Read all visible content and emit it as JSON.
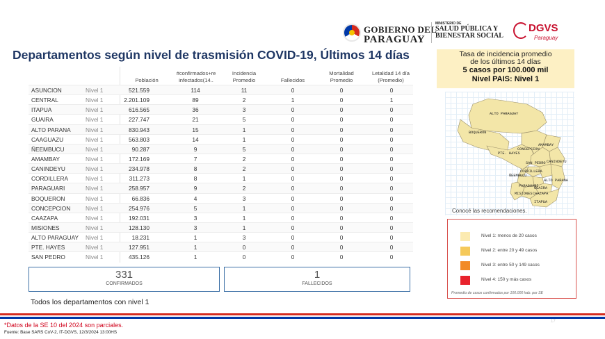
{
  "header": {
    "gov_line1": "GOBIERNO DEL",
    "gov_line2": "PARAGUAY",
    "ministry_small": "MINISTERIO DE",
    "ministry_l1": "SALUD PÚBLICA Y",
    "ministry_l2": "BIENESTAR SOCIAL",
    "dgvs": "DGVS",
    "dgvs_sub": "Paraguay"
  },
  "title": "Departamentos según nivel de trasmisión COVID-19, Últimos 14 días",
  "table": {
    "headers": {
      "poblacion": "Población",
      "confirmados": "#confirmados+re\ninfectados(14..",
      "incidencia": "Incidencia\nPromedio",
      "fallecidos": "Fallecidos",
      "mortalidad": "Mortalidad\nPromedio",
      "letalidad": "Letalidad 14 día\n(Promedio)"
    },
    "rows": [
      {
        "dep": "ASUNCION",
        "nivel": "Nivel 1",
        "pob": "521.559",
        "conf": "114",
        "inc": "11",
        "fal": "0",
        "mor": "0",
        "let": "0"
      },
      {
        "dep": "CENTRAL",
        "nivel": "Nivel 1",
        "pob": "2.201.109",
        "conf": "89",
        "inc": "2",
        "fal": "1",
        "mor": "0",
        "let": "1"
      },
      {
        "dep": "ITAPUA",
        "nivel": "Nivel 1",
        "pob": "616.565",
        "conf": "36",
        "inc": "3",
        "fal": "0",
        "mor": "0",
        "let": "0"
      },
      {
        "dep": "GUAIRA",
        "nivel": "Nivel 1",
        "pob": "227.747",
        "conf": "21",
        "inc": "5",
        "fal": "0",
        "mor": "0",
        "let": "0"
      },
      {
        "dep": "ALTO PARANA",
        "nivel": "Nivel 1",
        "pob": "830.943",
        "conf": "15",
        "inc": "1",
        "fal": "0",
        "mor": "0",
        "let": "0"
      },
      {
        "dep": "CAAGUAZU",
        "nivel": "Nivel 1",
        "pob": "563.803",
        "conf": "14",
        "inc": "1",
        "fal": "0",
        "mor": "0",
        "let": "0"
      },
      {
        "dep": "ÑEEMBUCU",
        "nivel": "Nivel 1",
        "pob": "90.287",
        "conf": "9",
        "inc": "5",
        "fal": "0",
        "mor": "0",
        "let": "0"
      },
      {
        "dep": "AMAMBAY",
        "nivel": "Nivel 1",
        "pob": "172.169",
        "conf": "7",
        "inc": "2",
        "fal": "0",
        "mor": "0",
        "let": "0"
      },
      {
        "dep": "CANINDEYU",
        "nivel": "Nivel 1",
        "pob": "234.978",
        "conf": "8",
        "inc": "2",
        "fal": "0",
        "mor": "0",
        "let": "0"
      },
      {
        "dep": "CORDILLERA",
        "nivel": "Nivel 1",
        "pob": "311.273",
        "conf": "8",
        "inc": "1",
        "fal": "0",
        "mor": "0",
        "let": "0"
      },
      {
        "dep": "PARAGUARI",
        "nivel": "Nivel 1",
        "pob": "258.957",
        "conf": "9",
        "inc": "2",
        "fal": "0",
        "mor": "0",
        "let": "0"
      },
      {
        "dep": "BOQUERON",
        "nivel": "Nivel 1",
        "pob": "66.836",
        "conf": "4",
        "inc": "3",
        "fal": "0",
        "mor": "0",
        "let": "0"
      },
      {
        "dep": "CONCEPCION",
        "nivel": "Nivel 1",
        "pob": "254.976",
        "conf": "5",
        "inc": "1",
        "fal": "0",
        "mor": "0",
        "let": "0"
      },
      {
        "dep": "CAAZAPA",
        "nivel": "Nivel 1",
        "pob": "192.031",
        "conf": "3",
        "inc": "1",
        "fal": "0",
        "mor": "0",
        "let": "0"
      },
      {
        "dep": "MISIONES",
        "nivel": "Nivel 1",
        "pob": "128.130",
        "conf": "3",
        "inc": "1",
        "fal": "0",
        "mor": "0",
        "let": "0"
      },
      {
        "dep": "ALTO PARAGUAY",
        "nivel": "Nivel 1",
        "pob": "18.231",
        "conf": "1",
        "inc": "3",
        "fal": "0",
        "mor": "0",
        "let": "0"
      },
      {
        "dep": "PTE. HAYES",
        "nivel": "Nivel 1",
        "pob": "127.951",
        "conf": "1",
        "inc": "0",
        "fal": "0",
        "mor": "0",
        "let": "0"
      },
      {
        "dep": "SAN PEDRO",
        "nivel": "Nivel 1",
        "pob": "435.126",
        "conf": "1",
        "inc": "0",
        "fal": "0",
        "mor": "0",
        "let": "0"
      }
    ]
  },
  "totals": {
    "confirmados_value": "331",
    "confirmados_label": "CONFIRMADOS",
    "fallecidos_value": "1",
    "fallecidos_label": "FALLECIDOS"
  },
  "all_departments_note": "Todos los departamentos con nivel 1",
  "incidence_box": {
    "line1": "Tasa de incidencia promedio",
    "line2": "de los últimos 14 días",
    "line3": "5 casos por 100.000 mil",
    "line4": "Nivel PAIS: Nivel 1"
  },
  "map": {
    "fill_color": "#f3e6a8",
    "labels": [
      "ALTO PARAGUAY",
      "BOQUERON",
      "PTE. HAYES",
      "CONCEPCION",
      "AMAMBAY",
      "SAN PEDRO",
      "CANINDEYU",
      "CORDILLERA",
      "ALTO PARANA",
      "PARAGUARI",
      "GUAIRA",
      "CAAZAPA",
      "ÑEEMBUCU",
      "MISIONES",
      "ITAPUA"
    ],
    "recommendations_link": "Conocé las recomendaciones."
  },
  "legend": {
    "items": [
      {
        "label": "Nivel 1: menos de 20 casos",
        "color": "#fbeab0"
      },
      {
        "label": "Nivel 2: entre 20 y 49 casos",
        "color": "#f5c95a"
      },
      {
        "label": "Nivel 3: entre 50 y 149 casos",
        "color": "#f28a26"
      },
      {
        "label": "Nivel 4: 150 y más casos",
        "color": "#e8222c"
      }
    ],
    "footnote": "Promedio de casos confirmados por 100.000 hab. por SE"
  },
  "footer": {
    "partial_note": "*Datos de la SE  10 del 2024 son parciales.",
    "source": "Fuente: Base SARS CoV-2, IT-DGVS, 12/3/2024 13:00HS",
    "page_number": "17"
  }
}
